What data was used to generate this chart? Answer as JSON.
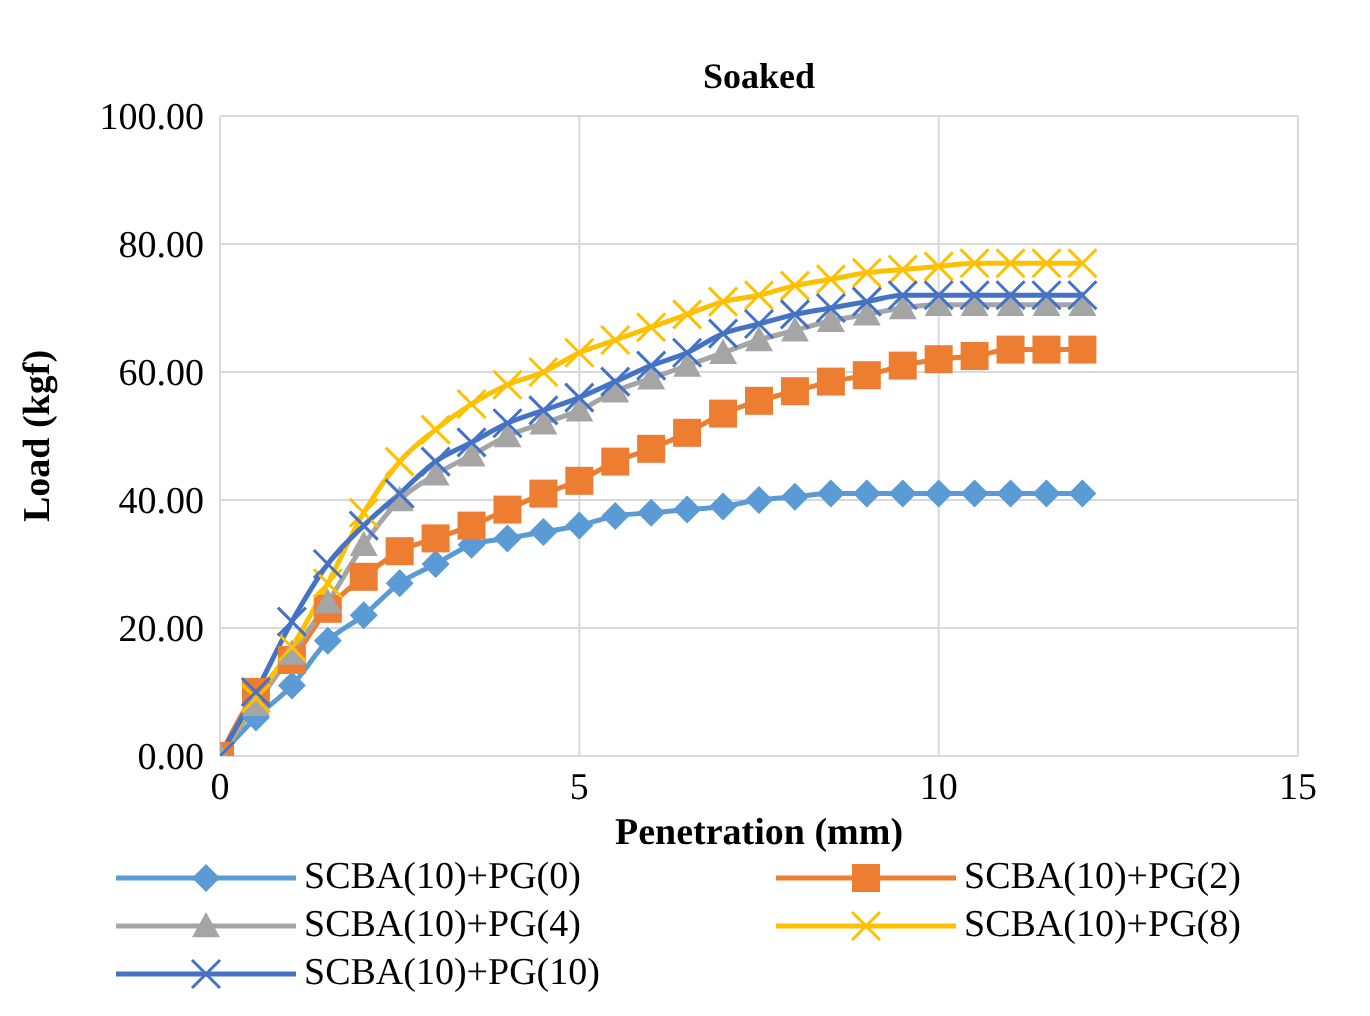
{
  "chart_data": {
    "type": "line",
    "title": "Soaked",
    "xlabel": "Penetration (mm)",
    "ylabel": "Load (kgf)",
    "x": [
      0,
      0.5,
      1,
      1.5,
      2,
      2.5,
      3,
      3.5,
      4,
      4.5,
      5,
      5.5,
      6,
      6.5,
      7,
      7.5,
      8,
      8.5,
      9,
      9.5,
      10,
      10.5,
      11,
      11.5,
      12
    ],
    "xlim": [
      0,
      15
    ],
    "xticks": [
      0,
      5,
      10,
      15
    ],
    "ylim": [
      0,
      100
    ],
    "yticks": [
      {
        "value": 0,
        "label": "0.00"
      },
      {
        "value": 20,
        "label": "20.00"
      },
      {
        "value": 40,
        "label": "40.00"
      },
      {
        "value": 60,
        "label": "60.00"
      },
      {
        "value": 80,
        "label": "80.00"
      },
      {
        "value": 100,
        "label": "100.00"
      }
    ],
    "grid": true,
    "legend": "bottom",
    "series": [
      {
        "name": "SCBA(10)+PG(0)",
        "color": "#5b9bd5",
        "marker": "diamond",
        "values": [
          0,
          6,
          11,
          18,
          22,
          27,
          30,
          33,
          34,
          35,
          36,
          37.5,
          38,
          38.5,
          39,
          40,
          40.5,
          41,
          41,
          41,
          41,
          41,
          41,
          41,
          41
        ]
      },
      {
        "name": "SCBA(10)+PG(2)",
        "color": "#ed7d31",
        "marker": "square",
        "values": [
          0,
          10,
          15,
          23,
          28,
          32,
          34,
          36,
          38.5,
          41,
          43,
          46,
          48,
          50.5,
          53.5,
          55.5,
          57,
          58.5,
          59.5,
          61,
          62,
          62.5,
          63.5,
          63.5,
          63.5
        ]
      },
      {
        "name": "SCBA(10)+PG(4)",
        "color": "#a5a5a5",
        "marker": "triangle",
        "values": [
          0,
          8,
          16,
          24,
          33,
          40,
          44,
          47,
          50,
          52,
          54,
          57,
          59,
          61,
          63,
          65,
          66.5,
          68,
          69,
          70,
          70.5,
          70.5,
          70.5,
          70.5,
          70.5
        ]
      },
      {
        "name": "SCBA(10)+PG(8)",
        "color": "#ffc000",
        "marker": "cross",
        "values": [
          0,
          9,
          17,
          27,
          38,
          46,
          51,
          55,
          58,
          60,
          63,
          65,
          67,
          69,
          71,
          72,
          73.5,
          74.5,
          75.5,
          76,
          76.5,
          77,
          77,
          77,
          77
        ]
      },
      {
        "name": "SCBA(10)+PG(10)",
        "color": "#4472c4",
        "marker": "cross",
        "values": [
          0,
          10,
          21,
          30,
          36,
          41,
          46,
          49,
          52,
          54,
          56,
          58.5,
          61,
          63,
          66,
          67.5,
          69,
          70,
          71,
          72,
          72,
          72,
          72,
          72,
          72
        ]
      }
    ]
  }
}
